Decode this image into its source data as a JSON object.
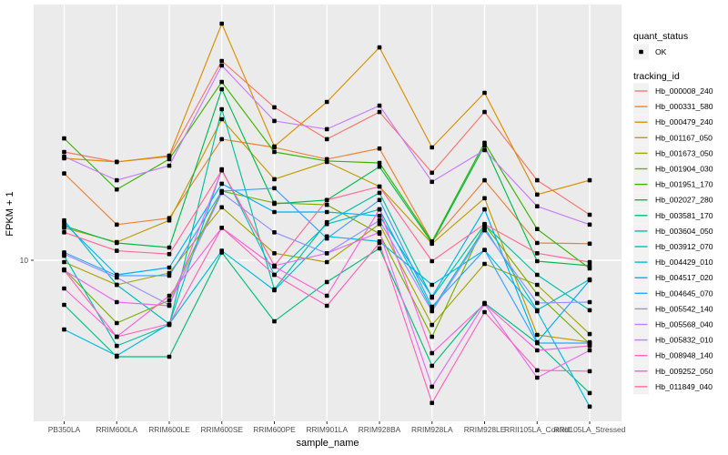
{
  "colors": {
    "panel_bg": "#EBEBEB",
    "grid": "#FFFFFF",
    "axis_text": "#4D4D4D",
    "tick": "#333333",
    "marker": "#000000",
    "legend_key_bg": "#F2F2F2"
  },
  "axes": {
    "y_tick_label": "10"
  },
  "legend": {
    "quant_title": "quant_status",
    "quant_item_label": "OK",
    "tracking_title": "tracking_id"
  },
  "chart_data": {
    "type": "line",
    "title": "",
    "xlabel": "sample_name",
    "ylabel": "FPKM + 1",
    "y_scale": "log10",
    "y_ticks": [
      10
    ],
    "ylim": [
      1.7,
      165
    ],
    "grid": true,
    "legend_position": "right",
    "marker": "black-square",
    "quant_status": "OK",
    "x_categories": [
      "PB350LA",
      "RRIM600LA",
      "RRIM600LE",
      "RRIM600SE",
      "RRIM600PE",
      "RRIM901LA",
      "RRIM928BA",
      "RRIM928LA",
      "RRIM928LE",
      "RRII105LA_Control",
      "RRII105LA_Stressed"
    ],
    "series": [
      {
        "name": "Hb_000008_240",
        "color": "#F8766D",
        "values": [
          32.9,
          29.5,
          31.3,
          89.6,
          53.8,
          37.9,
          51.1,
          26.2,
          51.1,
          24.1,
          16.5
        ]
      },
      {
        "name": "Hb_000331_580",
        "color": "#EA8331",
        "values": [
          26.0,
          14.8,
          15.9,
          37.9,
          34.6,
          30.4,
          34.2,
          12.3,
          24.1,
          12.1,
          12.0
        ]
      },
      {
        "name": "Hb_000479_240",
        "color": "#D89000",
        "values": [
          30.7,
          29.5,
          31.6,
          135.0,
          35.0,
          57.1,
          104.0,
          34.6,
          63.1,
          20.6,
          24.1
        ]
      },
      {
        "name": "Hb_001167_050",
        "color": "#C09B00",
        "values": [
          14.3,
          12.2,
          15.5,
          47.2,
          24.4,
          29.5,
          22.5,
          12.0,
          19.8,
          4.4,
          4.06
        ]
      },
      {
        "name": "Hb_001673_050",
        "color": "#A3A500",
        "values": [
          9.8,
          7.63,
          8.69,
          17.9,
          10.8,
          9.8,
          14.9,
          4.91,
          9.61,
          7.63,
          4.44
        ]
      },
      {
        "name": "Hb_001904_030",
        "color": "#7CAE00",
        "values": [
          9.05,
          5.01,
          6.44,
          21.4,
          18.8,
          18.4,
          13.4,
          4.31,
          14.8,
          6.9,
          3.98
        ]
      },
      {
        "name": "Hb_001951_170",
        "color": "#39B600",
        "values": [
          38.2,
          21.8,
          30.4,
          71.1,
          32.9,
          29.8,
          29.2,
          12.3,
          36.4,
          14.1,
          9.14
        ]
      },
      {
        "name": "Hb_002027_280",
        "color": "#00BB4E",
        "values": [
          14.6,
          12.1,
          11.5,
          65.7,
          18.6,
          19.4,
          28.0,
          12.1,
          35.3,
          9.9,
          9.42
        ]
      },
      {
        "name": "Hb_003581_170",
        "color": "#00BF7D",
        "values": [
          6.12,
          3.46,
          3.46,
          10.9,
          5.11,
          7.87,
          11.4,
          3.13,
          6.25,
          4.02,
          2.32
        ]
      },
      {
        "name": "Hb_003604_050",
        "color": "#00C1A3",
        "values": [
          10.5,
          3.9,
          4.91,
          52.7,
          7.26,
          15.2,
          21.0,
          6.63,
          14.8,
          8.52,
          5.77
        ]
      },
      {
        "name": "Hb_003912_070",
        "color": "#00BFC4",
        "values": [
          15.5,
          7.63,
          4.96,
          27.2,
          8.52,
          14.9,
          17.5,
          5.82,
          14.3,
          5.77,
          8.1
        ]
      },
      {
        "name": "Hb_004429_010",
        "color": "#00BAE0",
        "values": [
          4.67,
          3.5,
          4.96,
          11.1,
          7.19,
          13.0,
          12.3,
          7.63,
          11.2,
          5.71,
          2.0
        ]
      },
      {
        "name": "Hb_004517_020",
        "color": "#00B0F6",
        "values": [
          15.1,
          8.52,
          9.23,
          23.2,
          17.0,
          17.0,
          16.3,
          6.7,
          17.5,
          4.06,
          8.02
        ]
      },
      {
        "name": "Hb_004645_070",
        "color": "#35A2FF",
        "values": [
          10.9,
          8.44,
          8.44,
          21.4,
          22.1,
          12.7,
          19.4,
          6.0,
          11.2,
          4.02,
          4.02
        ]
      },
      {
        "name": "Hb_005542_140",
        "color": "#9590FF",
        "values": [
          10.7,
          8.27,
          6.12,
          21.0,
          13.6,
          10.8,
          15.5,
          5.71,
          13.9,
          6.25,
          6.31
        ]
      },
      {
        "name": "Hb_005568_040",
        "color": "#C77CFF",
        "values": [
          31.3,
          24.1,
          28.3,
          85.2,
          46.3,
          42.3,
          54.8,
          23.7,
          33.6,
          18.1,
          14.8
        ]
      },
      {
        "name": "Hb_005832_010",
        "color": "#E76BF3",
        "values": [
          8.96,
          6.31,
          6.06,
          26.9,
          9.42,
          10.8,
          13.6,
          2.49,
          6.19,
          2.75,
          3.71
        ]
      },
      {
        "name": "Hb_008948_140",
        "color": "#FA62DB",
        "values": [
          7.33,
          4.31,
          6.77,
          14.3,
          9.32,
          6.77,
          17.5,
          3.6,
          6.19,
          3.71,
          3.9
        ]
      },
      {
        "name": "Hb_009252_050",
        "color": "#FF62BC",
        "values": [
          8.96,
          4.31,
          4.96,
          14.3,
          8.52,
          6.06,
          12.1,
          2.08,
          5.65,
          2.98,
          2.95
        ]
      },
      {
        "name": "Hb_011849_040",
        "color": "#FF6A98",
        "values": [
          13.6,
          11.1,
          10.7,
          26.9,
          9.42,
          19.4,
          22.5,
          9.9,
          14.9,
          10.8,
          9.8
        ]
      }
    ]
  }
}
